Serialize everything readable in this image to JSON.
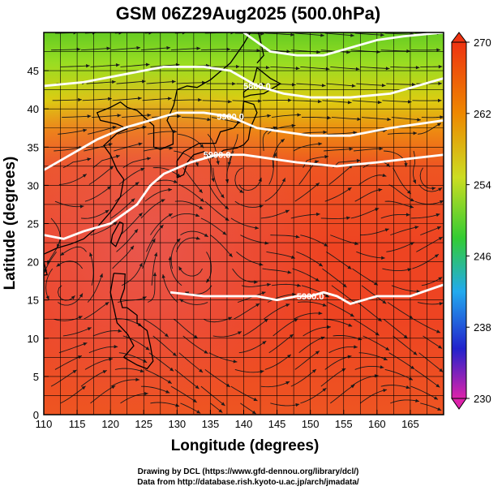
{
  "chart_data": {
    "type": "heatmap",
    "title": "GSM 06Z29Aug2025 (500.0hPa)",
    "xlabel": "Longitude (degrees)",
    "ylabel": "Latitude  (degrees)",
    "xlim": [
      110,
      170
    ],
    "ylim": [
      0,
      50
    ],
    "x_ticks": [
      110,
      115,
      120,
      125,
      130,
      135,
      140,
      145,
      150,
      155,
      160,
      165
    ],
    "y_ticks": [
      0,
      5,
      10,
      15,
      20,
      25,
      30,
      35,
      40,
      45
    ],
    "grid": true,
    "colorbar": {
      "label_values": [
        230,
        238,
        246,
        254,
        262,
        270
      ],
      "range": [
        230,
        270
      ],
      "placement": "right",
      "colors": [
        "#dd22aa",
        "#2222cc",
        "#22aaee",
        "#33cc33",
        "#ccdd22",
        "#ee8800",
        "#ee3311"
      ]
    },
    "contours": [
      {
        "label": "5900.0",
        "points": [
          [
            110,
            23.5
          ],
          [
            113,
            23
          ],
          [
            116,
            24
          ],
          [
            120,
            25
          ],
          [
            124,
            27.5
          ],
          [
            126,
            30
          ],
          [
            128,
            31.5
          ],
          [
            132,
            33
          ],
          [
            136,
            34
          ],
          [
            140,
            34
          ],
          [
            144,
            33.5
          ],
          [
            148,
            33
          ],
          [
            154,
            32.5
          ],
          [
            160,
            33
          ],
          [
            165,
            33.5
          ],
          [
            170,
            34
          ]
        ]
      },
      {
        "label": "5900.0",
        "points": [
          [
            110,
            32
          ],
          [
            114,
            34
          ],
          [
            118,
            36
          ],
          [
            122,
            37.5
          ],
          [
            126,
            38.5
          ],
          [
            130,
            39.5
          ],
          [
            134,
            39.5
          ],
          [
            138,
            39
          ],
          [
            142,
            37.5
          ],
          [
            146,
            37
          ],
          [
            150,
            36.5
          ],
          [
            156,
            36.5
          ],
          [
            162,
            37.5
          ],
          [
            170,
            38.5
          ]
        ]
      },
      {
        "label": "5800.0",
        "points": [
          [
            110,
            43
          ],
          [
            116,
            43.5
          ],
          [
            122,
            44.5
          ],
          [
            128,
            45.5
          ],
          [
            134,
            45.5
          ],
          [
            138,
            45
          ],
          [
            142,
            43
          ],
          [
            146,
            42
          ],
          [
            150,
            41.5
          ],
          [
            156,
            41.5
          ],
          [
            162,
            42
          ],
          [
            170,
            44
          ]
        ]
      },
      {
        "label": "5900.0",
        "points": [
          [
            129,
            16
          ],
          [
            134,
            15.5
          ],
          [
            138,
            15.5
          ],
          [
            142,
            15.5
          ],
          [
            145,
            15
          ],
          [
            148,
            15.5
          ],
          [
            150,
            15.5
          ],
          [
            152,
            16
          ],
          [
            154,
            15.5
          ],
          [
            156,
            14.5
          ],
          [
            160,
            15.5
          ],
          [
            165,
            15.5
          ],
          [
            170,
            17
          ]
        ]
      },
      {
        "label": "",
        "points": [
          [
            140,
            50
          ],
          [
            144,
            47.5
          ],
          [
            148,
            47
          ],
          [
            152,
            47
          ],
          [
            156,
            48
          ],
          [
            160,
            49
          ],
          [
            164,
            49.5
          ],
          [
            170,
            50
          ]
        ]
      }
    ],
    "color_field_label": "500.0hPa"
  },
  "credits": {
    "line1": "Drawing by DCL (https://www.gfd-dennou.org/library/dcl/)",
    "line2": "Data from http://database.rish.kyoto-u.ac.jp/arch/jmadata/"
  },
  "colors": {
    "background": "#ffffff",
    "axis": "#000000",
    "contour": "#ffffff",
    "streamline": "#1a1a1a",
    "coast": "#000000"
  }
}
